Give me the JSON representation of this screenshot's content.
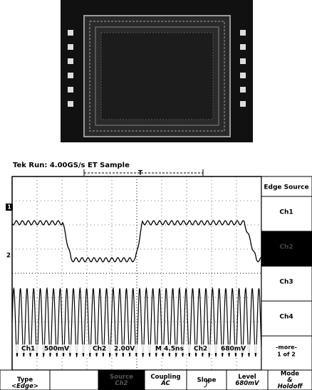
{
  "header": {
    "status": "Tek Run: 4.00GS/s ET Sample",
    "trigger_marker": "T"
  },
  "channel_markers": [
    "1",
    "2"
  ],
  "side_menu": {
    "title": "Edge Source",
    "items": [
      "Ch1",
      "Ch2",
      "Ch3",
      "Ch4"
    ],
    "more": "-more-",
    "page": "1 of 2"
  },
  "readout": {
    "ch1": "Ch1",
    "ch1_scale": "500mV",
    "ch2": "Ch2",
    "ch2_scale": "2.00V",
    "timebase": "M 4.5ns",
    "trigger_source": "Ch2",
    "trigger_level": "680mV"
  },
  "bottom_menu": [
    {
      "lines": [
        "Type",
        "<Edge>"
      ]
    },
    {
      "lines": [
        "Source",
        "Ch2"
      ]
    },
    {
      "lines": [
        "Coupling",
        "AC"
      ]
    },
    {
      "lines": [
        "Slope"
      ]
    },
    {
      "lines": [
        "Level",
        "680mV"
      ]
    },
    {
      "lines": [
        "Mode",
        "&",
        "Holdoff"
      ]
    }
  ]
}
